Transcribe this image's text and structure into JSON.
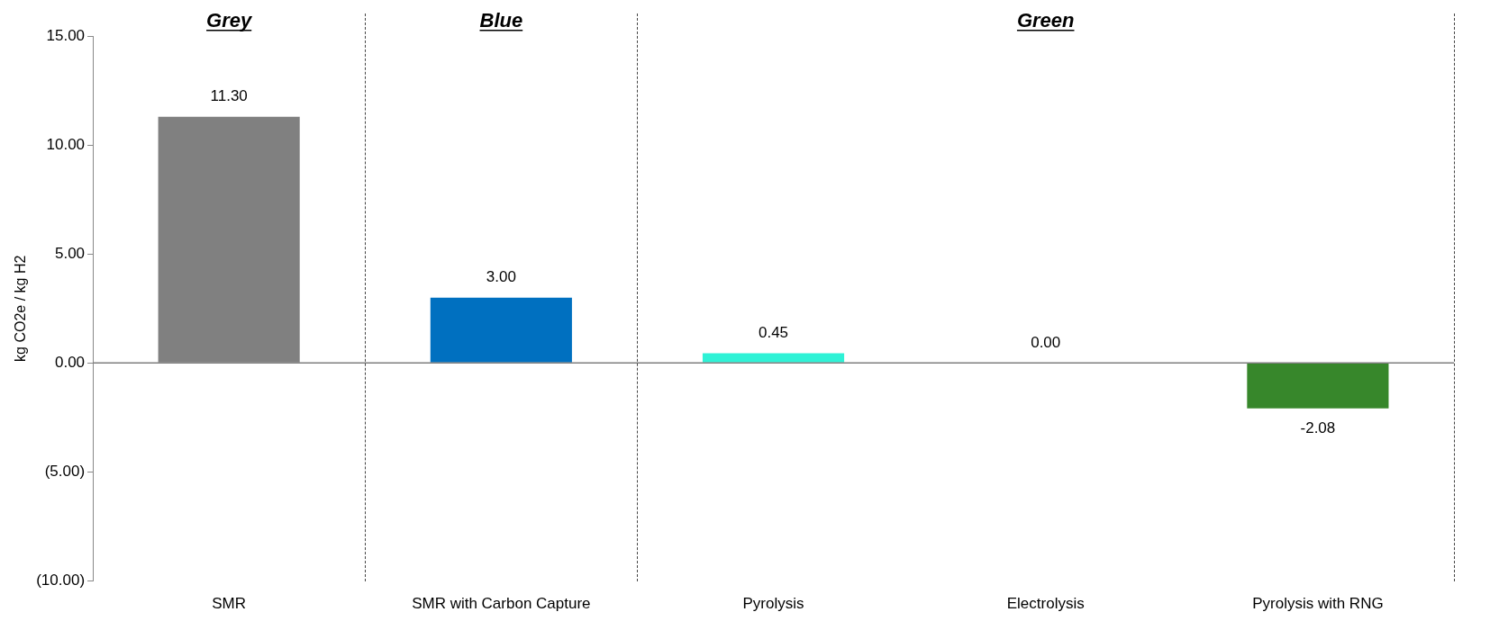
{
  "chart_data": {
    "type": "bar",
    "ylabel": "kg CO2e / kg H2",
    "categories": [
      "SMR",
      "SMR with Carbon Capture",
      "Pyrolysis",
      "Electrolysis",
      "Pyrolysis with RNG"
    ],
    "values": [
      11.3,
      3.0,
      0.45,
      0.0,
      -2.08
    ],
    "colors": [
      "#808080",
      "#0070c0",
      "#2ef2d6",
      "#37872b",
      "#37872b"
    ],
    "value_labels": [
      "11.30",
      "3.00",
      "0.45",
      "0.00",
      "-2.08"
    ],
    "ylim": [
      -10,
      15
    ],
    "yticks": [
      {
        "value": -10,
        "label": "(10.00)"
      },
      {
        "value": -5,
        "label": "(5.00)"
      },
      {
        "value": 0,
        "label": "0.00"
      },
      {
        "value": 5,
        "label": "5.00"
      },
      {
        "value": 10,
        "label": "10.00"
      },
      {
        "value": 15,
        "label": "15.00"
      }
    ],
    "annotations": [
      "Grey",
      "Blue",
      "Green"
    ],
    "grid": false,
    "legend": false
  }
}
